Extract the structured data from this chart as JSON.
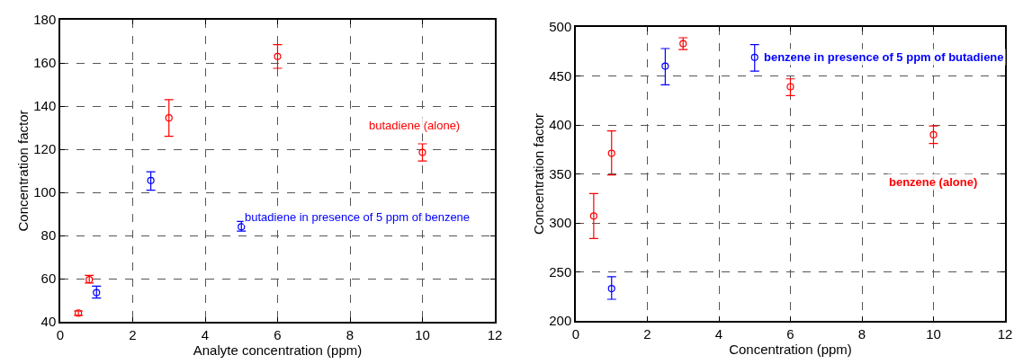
{
  "chart_data": [
    {
      "type": "scatter",
      "xlabel": "Analyte concentration (ppm)",
      "ylabel": "Concentration factor",
      "xlim": [
        0,
        12
      ],
      "xticks": [
        0,
        2,
        4,
        6,
        8,
        10,
        12
      ],
      "ylim": [
        40,
        180
      ],
      "yticks": [
        40,
        60,
        80,
        100,
        120,
        140,
        160,
        180
      ],
      "grid": true,
      "marker": "circle",
      "series": [
        {
          "name": "butadiene (alone)",
          "color": "#ff0000",
          "x": [
            0.5,
            0.8,
            3,
            6,
            10
          ],
          "values": [
            44,
            59.5,
            134.5,
            163,
            118.5
          ],
          "errors": [
            [
              43,
              45
            ],
            [
              58,
              61.5
            ],
            [
              126,
              143
            ],
            [
              157.5,
              168.5
            ],
            [
              114.5,
              122.5
            ]
          ]
        },
        {
          "name": "butadiene in presence of 5 ppm of benzene",
          "color": "#0000ff",
          "x": [
            1,
            2.5,
            5
          ],
          "values": [
            53.5,
            105.5,
            84
          ],
          "errors": [
            [
              51,
              56.5
            ],
            [
              101,
              109.5
            ],
            [
              82,
              86.5
            ]
          ]
        }
      ]
    },
    {
      "type": "scatter",
      "xlabel": "Concentration (ppm)",
      "ylabel": "Concentration factor",
      "xlim": [
        0,
        12
      ],
      "xticks": [
        0,
        2,
        4,
        6,
        8,
        10,
        12
      ],
      "ylim": [
        200,
        500
      ],
      "yticks": [
        200,
        250,
        300,
        350,
        400,
        450,
        500
      ],
      "grid": true,
      "marker": "circle",
      "series": [
        {
          "name": "benzene (alone)",
          "color": "#ff0000",
          "x": [
            0.5,
            1,
            3,
            6,
            10
          ],
          "values": [
            307,
            371,
            483,
            439,
            390
          ],
          "errors": [
            [
              284,
              330
            ],
            [
              349,
              394
            ],
            [
              477,
              489
            ],
            [
              430,
              447
            ],
            [
              381,
              399
            ]
          ]
        },
        {
          "name": "benzene in presence of 5 ppm of butadiene",
          "color": "#0000ff",
          "x": [
            1,
            2.5,
            5
          ],
          "values": [
            233,
            460,
            469
          ],
          "errors": [
            [
              222,
              245
            ],
            [
              441,
              478
            ],
            [
              455,
              482
            ]
          ]
        }
      ]
    }
  ]
}
